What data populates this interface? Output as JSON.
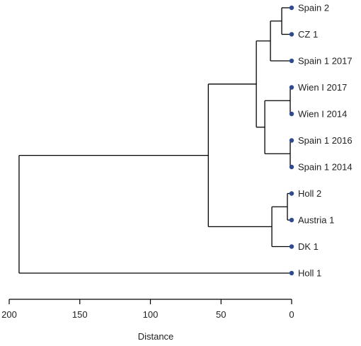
{
  "chart_data": {
    "type": "dendrogram",
    "orientation": "horizontal",
    "xlabel": "Distance",
    "xlim": [
      200,
      0
    ],
    "xticks": [
      200,
      150,
      100,
      50,
      0
    ],
    "leaf_color": "#2e4b8f",
    "line_color": "#000000",
    "leaves": [
      "Spain 2",
      "CZ 1",
      "Spain 1 2017",
      "Wien I 2017",
      "Wien I 2014",
      "Spain 1 2016",
      "Spain 1 2014",
      "Holl 2",
      "Austria 1",
      "DK 1",
      "Holl 1"
    ],
    "merges": [
      {
        "left": "Spain 2",
        "right": "CZ 1",
        "height": 7
      },
      {
        "left": "Wien I 2017",
        "right": "Wien I 2014",
        "height": 1
      },
      {
        "left": "Spain 1 2016",
        "right": "Spain 1 2014",
        "height": 1
      },
      {
        "left": "Holl 2",
        "right": "Austria 1",
        "height": 3
      },
      {
        "left": "Holl 2+Austria 1",
        "right": "DK 1",
        "height": 14
      },
      {
        "left": "Wien I 2017+Wien I 2014",
        "right": "Spain 1 2016+Spain 1 2014",
        "height": 19
      },
      {
        "left": "Spain 2+CZ 1",
        "right": "Spain 1 2017",
        "height": 15
      },
      {
        "left": "Spain 2+CZ 1+Spain 1 2017",
        "right": "Wien I 2017+Wien I 2014+Spain 1 2016+Spain 1 2014",
        "height": 25
      },
      {
        "left": "Spain 2..Spain 1 2014",
        "right": "Holl 2+Austria 1+DK 1",
        "height": 59
      },
      {
        "left": "Spain 2..DK 1",
        "right": "Holl 1",
        "height": 193
      }
    ]
  }
}
